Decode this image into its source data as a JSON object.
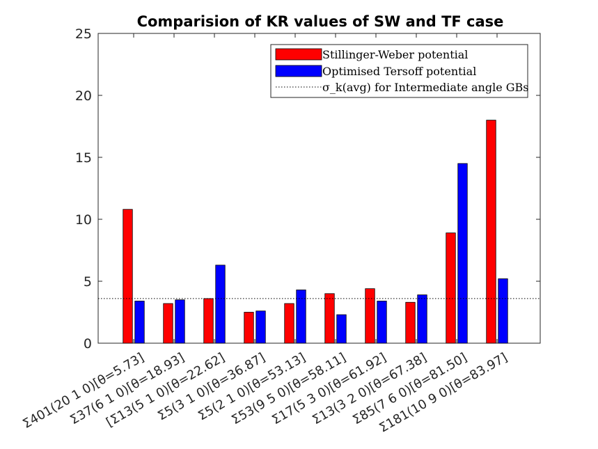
{
  "chart_data": {
    "type": "bar",
    "title": "Comparision of KR values of SW and TF case",
    "xlabel": "",
    "ylabel": "",
    "ylim": [
      0,
      25
    ],
    "yticks": [
      "0",
      "5",
      "10",
      "15",
      "20",
      "25"
    ],
    "categories": [
      "Σ401(20 1 0)[θ=5.73]",
      "Σ37(6 1 0)[θ=18.93]",
      "[Σ13(5 1 0)[θ=22.62]",
      "Σ5(3 1 0)[θ=36.87]",
      "Σ5(2 1 0)[θ=53.13]",
      "Σ53(9 5 0)[θ=58.11]",
      "Σ17(5 3 0)[θ=61.92]",
      "Σ13(3 2 0)[θ=67.38]",
      "Σ85(7 6 0)[θ=81.50]",
      "Σ181(10 9 0)[θ=83.97]"
    ],
    "series": [
      {
        "name": "Stillinger-Weber potential",
        "color": "#ff0000",
        "values": [
          10.8,
          3.2,
          3.6,
          2.5,
          3.2,
          4.0,
          4.4,
          3.3,
          8.9,
          18.0
        ]
      },
      {
        "name": "Optimised Tersoff potential",
        "color": "#0000ff",
        "values": [
          3.4,
          3.5,
          6.3,
          2.6,
          4.3,
          2.3,
          3.4,
          3.9,
          14.5,
          5.2
        ]
      }
    ],
    "reference_line": {
      "label": "σ_k(avg) for Intermediate angle GBs",
      "value": 3.6,
      "style": "dotted"
    },
    "legend_position": "top-right",
    "grid": false
  }
}
